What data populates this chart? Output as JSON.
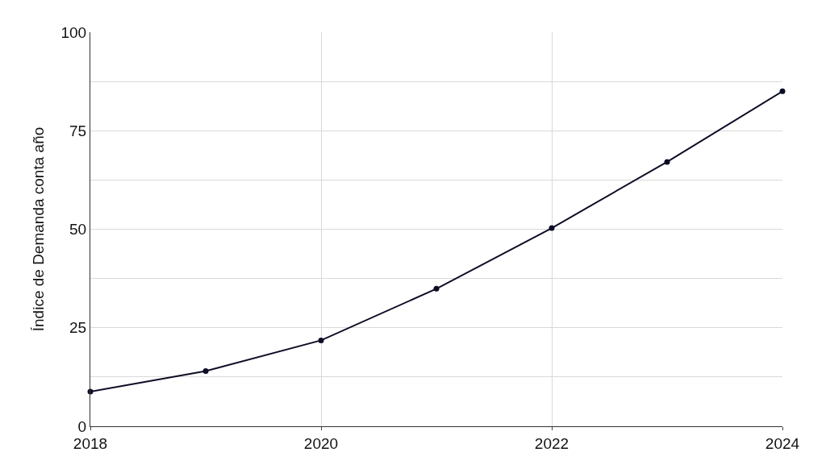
{
  "chart_data": {
    "type": "line",
    "ylabel": "Índice de Demanda conta año",
    "x": [
      2018,
      2019,
      2020,
      2021,
      2022,
      2023,
      2024
    ],
    "series": [
      {
        "color": "#0d0d26",
        "values": [
          8.8,
          14.0,
          21.8,
          34.9,
          50.3,
          67.1,
          85.0
        ]
      }
    ],
    "xlim": [
      2018,
      2024
    ],
    "xticks": [
      2018,
      2020,
      2022,
      2024
    ],
    "ylim": [
      0,
      100
    ],
    "yticks": [
      0,
      {
        "value": 12.5,
        "label": null
      },
      25,
      {
        "value": 37.5,
        "label": null
      },
      50,
      {
        "value": 62.5,
        "label": null
      },
      75,
      {
        "value": 87.5,
        "label": null
      },
      100
    ],
    "grid": true,
    "marker": "circle",
    "line_style": "solid",
    "legend": false
  }
}
